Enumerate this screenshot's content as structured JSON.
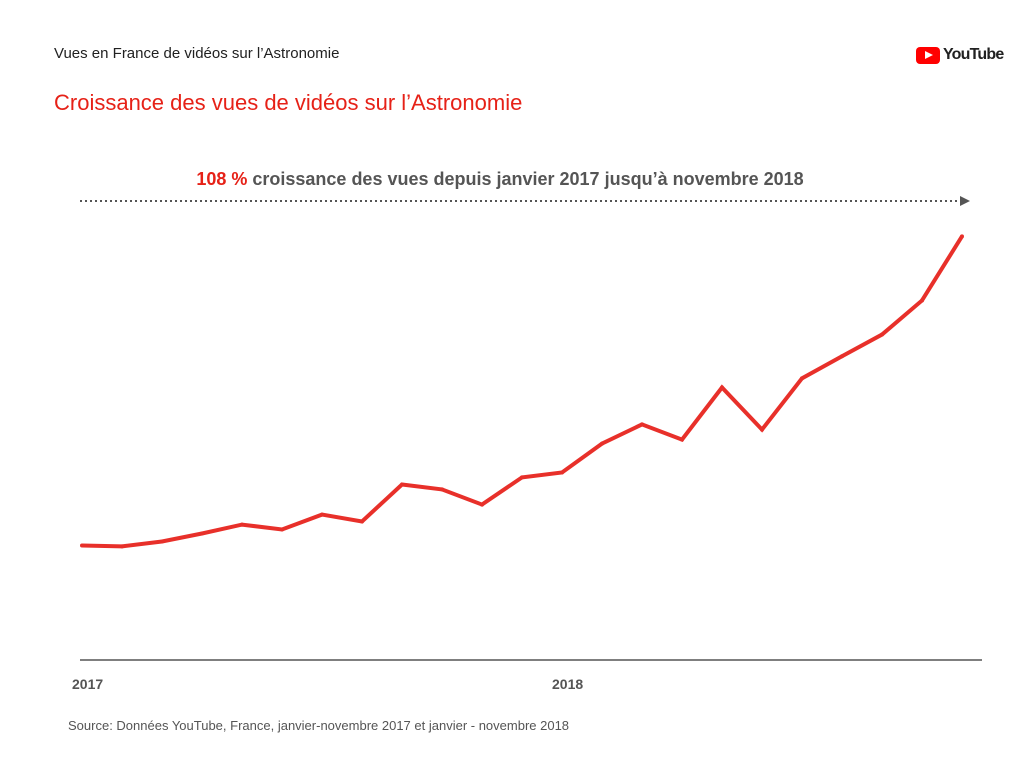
{
  "header": {
    "supertitle": "Vues en France de vidéos sur l’Astronomie",
    "logo_text": "YouTube"
  },
  "chart_data": {
    "type": "line",
    "title": "Croissance des vues de vidéos sur l’Astronomie",
    "annotation": {
      "highlight": "108 %",
      "text": " croissance des vues depuis janvier 2017 jusqu’à novembre 2018"
    },
    "x": [
      "2017-01",
      "2017-02",
      "2017-03",
      "2017-04",
      "2017-05",
      "2017-06",
      "2017-07",
      "2017-08",
      "2017-09",
      "2017-10",
      "2017-11",
      "2017-12",
      "2018-01",
      "2018-02",
      "2018-03",
      "2018-04",
      "2018-05",
      "2018-06",
      "2018-07",
      "2018-08",
      "2018-09",
      "2018-10",
      "2018-11"
    ],
    "values": [
      100,
      99.7,
      101.4,
      104.2,
      107.3,
      105.6,
      110.8,
      108.4,
      121.3,
      119.6,
      114.3,
      123.8,
      125.5,
      135.6,
      142.3,
      137.0,
      155.2,
      140.5,
      158.4,
      166.1,
      173.7,
      185.6,
      208
    ],
    "x_tick_labels": [
      {
        "label": "2017",
        "index": 0
      },
      {
        "label": "2018",
        "index": 12
      }
    ],
    "ylim": [
      60,
      220
    ],
    "y_axis_shown": false,
    "grid": false,
    "line_color": "#e8302a",
    "source": "Source: Données YouTube, France, janvier-novembre  2017 et janvier - novembre 2018"
  }
}
